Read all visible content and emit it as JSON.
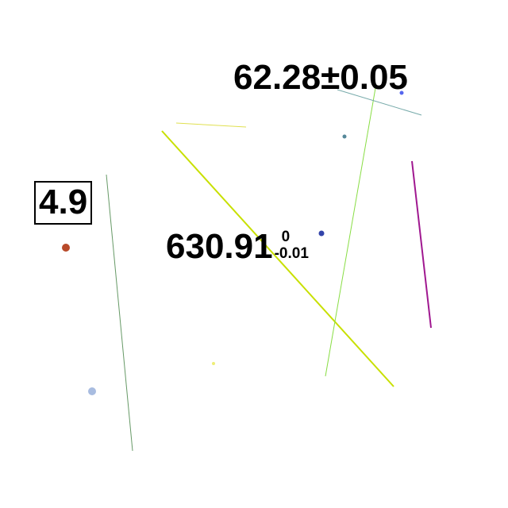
{
  "labels": {
    "plus_minus": "62.28±0.05",
    "boxed": "4.9",
    "asymmetric": {
      "value": "630.91",
      "upper": "0",
      "lower": "-0.01"
    }
  },
  "colors": {
    "yellow_green": "#c8e000",
    "pale_yellow": "#e0e050",
    "grass_green": "#88dd44",
    "dark_green": "#669966",
    "teal_gray": "#77aaaa",
    "purple": "#a01890",
    "blue_dot": "#5566ee",
    "navy_dot": "#3344aa",
    "teal_dot": "#558899",
    "rust_dot": "#b84a2a",
    "light_blue_dot": "#a8bce0",
    "yellow_dot": "#eeee77"
  }
}
